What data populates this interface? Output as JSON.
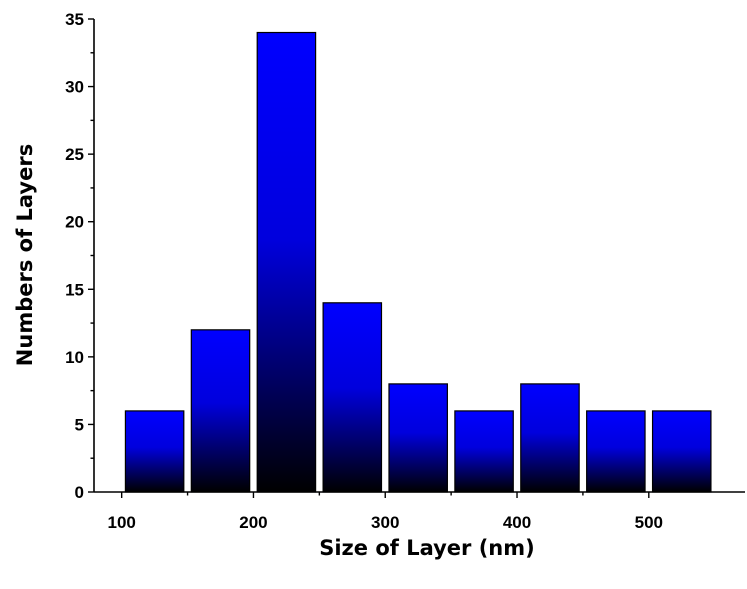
{
  "chart_data": {
    "type": "bar",
    "title": "",
    "xlabel": "Size of Layer (nm)",
    "ylabel": "Numbers of Layers",
    "x": [
      125,
      175,
      225,
      275,
      325,
      375,
      425,
      475,
      525
    ],
    "values": [
      6,
      12,
      34,
      14,
      8,
      6,
      8,
      6,
      6
    ],
    "bin_width": 50,
    "xlim": [
      79,
      573
    ],
    "ylim": [
      0,
      35
    ],
    "x_ticks": [
      100,
      200,
      300,
      400,
      500
    ],
    "y_ticks": [
      0,
      5,
      10,
      15,
      20,
      25,
      30,
      35
    ],
    "grid": false,
    "legend": "none",
    "bar_gradient": {
      "top": "#0000ff",
      "bottom": "#000000"
    }
  }
}
